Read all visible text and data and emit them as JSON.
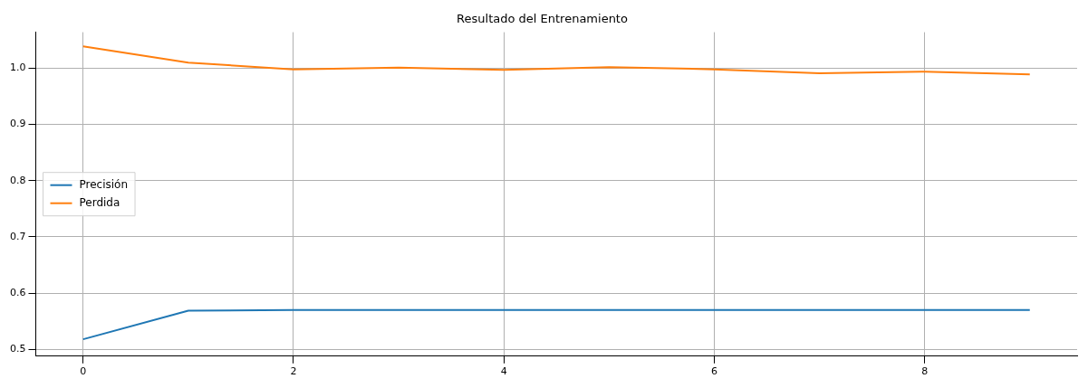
{
  "chart_data": {
    "type": "line",
    "title": "Resultado del Entrenamiento",
    "x": [
      0,
      1,
      2,
      3,
      4,
      5,
      6,
      7,
      8,
      9
    ],
    "series": [
      {
        "name": "Precisión",
        "color": "#1f77b4",
        "values": [
          0.518,
          0.569,
          0.57,
          0.57,
          0.57,
          0.57,
          0.57,
          0.57,
          0.57,
          0.57
        ]
      },
      {
        "name": "Perdida",
        "color": "#ff7f0e",
        "values": [
          1.039,
          1.01,
          0.998,
          1.001,
          0.997,
          1.002,
          0.998,
          0.991,
          0.994,
          0.989
        ]
      }
    ],
    "xlim": [
      -0.45,
      9.45
    ],
    "xticks": [
      0,
      2,
      4,
      6,
      8
    ],
    "ylim": [
      0.488,
      1.064
    ],
    "yticks": [
      {
        "value": 0.5,
        "label": "0.5"
      },
      {
        "value": 0.6,
        "label": "0.6"
      },
      {
        "value": 0.7,
        "label": "0.7"
      },
      {
        "value": 0.8,
        "label": "0.8"
      },
      {
        "value": 0.9,
        "label": "0.9"
      },
      {
        "value": 1.0,
        "label": "1.0"
      }
    ],
    "grid": true,
    "legend": "left",
    "marker": "none",
    "line_style": "solid"
  }
}
